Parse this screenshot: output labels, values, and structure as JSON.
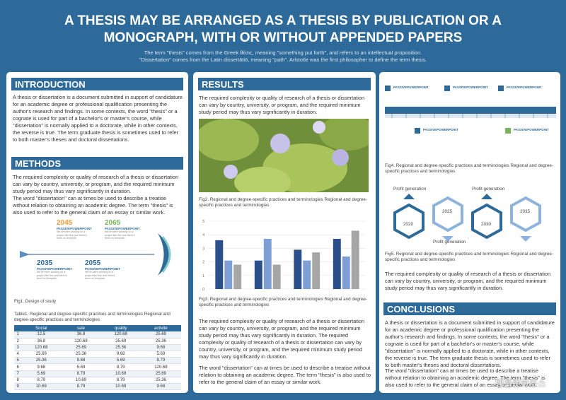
{
  "header": {
    "title": "A THESIS MAY BE ARRANGED AS A THESIS BY PUBLICATION OR A MONOGRAPH, WITH OR WITHOUT APPENDED PAPERS",
    "subtitle": [
      "The term \"thesis\" comes from the Greek θέσις, meaning \"something put forth\", and refers to an intellectual proposition.",
      "\"Dissertation\" comes from the Latin dissertātiō, meaning \"path\". Aristotle was the first philosopher to define the term thesis."
    ]
  },
  "introduction": {
    "heading": "INTRODUCTION",
    "text": "A thesis or dissertation is a document submitted in support of candidature for an academic degree or professional qualification presenting the author's research and findings. In some contexts, the word \"thesis\" or a cognate is used for part of a bachelor's or master's course, while \"dissertation\" is normally applied to a doctorate, while in other contexts, the reverse is true. The term graduate thesis is sometimes used to refer to both master's theses and doctoral dissertations."
  },
  "methods": {
    "heading": "METHODS",
    "text": [
      "The required complexity or quality of research of a thesis or dissertation can vary by country, university, or program, and the required minimum study period may thus vary significantly in duration.",
      "The word \"dissertation\" can at times be used to describe a treatise without relation to obtaining an academic degree. The term \"thesis\" is also used to refer to the general claim of an essay or similar work."
    ]
  },
  "figure1": {
    "items": [
      {
        "year": "2045",
        "label": "PASSIVEPOWERPOINT",
        "text": "We've been working on a project like this and there's been no template."
      },
      {
        "year": "2065",
        "label": "PASSIVEPOWERPOINT",
        "text": "We've been working on a project like this and there's been no template."
      },
      {
        "year": "2035",
        "label": "PASSIVEPOWERPOINT",
        "text": "We've been working on a project like this and there's been no template."
      },
      {
        "year": "2055",
        "label": "PASSIVEPOWERPOINT",
        "text": "We've been working on a project like this and there's been no template."
      }
    ],
    "caption": "Fig1. Design of study"
  },
  "table": {
    "caption": "Table1. Regional and degree-specific practices and terminologies Regional and degree-specific practices and terminologies",
    "columns": [
      "Social",
      "sale",
      "quality",
      "activite"
    ],
    "rows": [
      [
        1,
        12.5,
        36.8,
        120.68,
        25.69
      ],
      [
        2,
        36.8,
        120.68,
        25.69,
        25.36
      ],
      [
        3,
        120.68,
        25.69,
        25.36,
        9.68
      ],
      [
        4,
        25.69,
        25.36,
        9.68,
        5.69
      ],
      [
        5,
        25.36,
        9.68,
        5.69,
        8.79
      ],
      [
        6,
        9.68,
        5.69,
        8.79,
        120.68
      ],
      [
        7,
        5.69,
        8.79,
        10.69,
        25.69
      ],
      [
        8,
        8.79,
        10.69,
        8.79,
        25.36
      ],
      [
        9,
        10.69,
        8.79,
        10.69,
        9.68
      ]
    ]
  },
  "results": {
    "heading": "RESULTS",
    "text": "The required complexity or quality of research of a thesis or dissertation can vary by country, university, or program, and the required minimum study period may thus vary significantly in duration.",
    "text2": "The required complexity or quality of research of a thesis or dissertation can vary by country, university, or program, and the required minimum study period may thus vary significantly in duration. The required complexity or quality of research of a thesis or dissertation can vary by country, university, or program, and the required minimum study period may thus vary significantly in duration.",
    "text3": "The word \"dissertation\" can at times be used to describe a treatise without relation to obtaining an academic degree. The term \"thesis\" is also used to refer to the general claim of an essay or similar work."
  },
  "figure2": {
    "caption": "Fig2. Regional and degree-specific practices and terminologies Regional and degree-specific practices and terminologies"
  },
  "chart_data": {
    "type": "bar",
    "categories": [
      null,
      null,
      null,
      null
    ],
    "series": [
      {
        "color": "#2b4f8a",
        "values": [
          3.6,
          2.1,
          2.9,
          3.7
        ]
      },
      {
        "color": "#7d9fd6",
        "values": [
          2.1,
          3.7,
          2.1,
          2.4
        ]
      },
      {
        "color": "#a6a6a6",
        "values": [
          1.8,
          1.8,
          2.7,
          4.3
        ]
      }
    ],
    "ylim": [
      0,
      5
    ],
    "yticks": [
      0,
      1,
      2,
      3,
      4,
      5
    ],
    "grid": true
  },
  "figure3": {
    "caption": "Fig3. Regional and degree-specific practices and terminologies Regional and degree-specific practices and terminologies"
  },
  "figure4": {
    "items": [
      "PASSIVEPOWERPOINT",
      "PASSIVEPOWERPOINT",
      "PASSIVEPOWERPOINT",
      "PASSIVEPOWERPOINT",
      "PASSIVEPOWERPOINT"
    ],
    "caption": "Fig4. Regional and degree-specific practices and terminologies Regional and degree-specific practices and terminologies"
  },
  "figure5": {
    "labels": [
      "Profit generation",
      "Profit generation",
      "Profit generation"
    ],
    "years": [
      "2020",
      "2025",
      "2030",
      "2035"
    ],
    "caption": "Fig5. Regional and degree-specific practices and terminologies Regional and degree-specific practices and terminologies"
  },
  "discussion": {
    "text": "The required complexity or quality of research of a thesis or dissertation can vary by country, university, or program, and the required minimum study period may thus vary significantly in duration."
  },
  "conclusions": {
    "heading": "CONCLUSIONS",
    "text": [
      "A thesis or dissertation is a document submitted in support of candidature for an academic degree or professional qualification presenting the author's research and findings. In some contexts, the word \"thesis\" or a cognate is used for part of a bachelor's or master's course, while \"dissertation\" is normally applied to a doctorate, while in other contexts, the reverse is true. The term graduate thesis is sometimes used to refer to both master's theses and doctoral dissertations.",
      "The word \"dissertation\" can at times be used to describe a treatise without relation to obtaining an academic degree. The term \"thesis\" is also used to refer to the general claim of an essay or similar work."
    ]
  },
  "watermark": "템플릿하우스"
}
